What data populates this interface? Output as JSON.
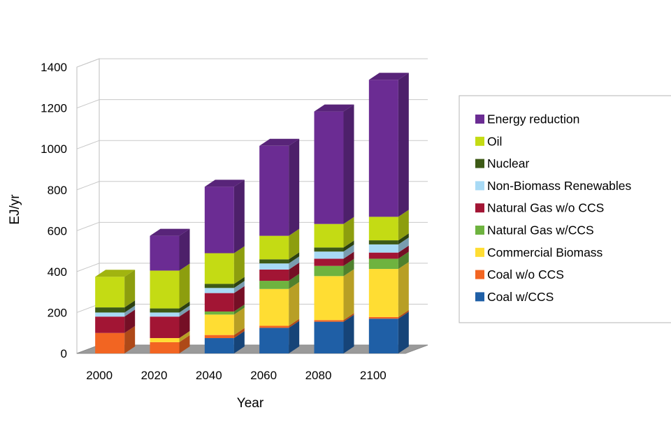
{
  "chart_data": {
    "type": "bar",
    "stacked": true,
    "three_d": true,
    "title": "",
    "xlabel": "Year",
    "ylabel": "EJ/yr",
    "ylim": [
      0,
      1400
    ],
    "yticks": [
      0,
      200,
      400,
      600,
      800,
      1000,
      1200,
      1400
    ],
    "grid": true,
    "legend_position": "right",
    "categories": [
      "2000",
      "2020",
      "2040",
      "2060",
      "2080",
      "2100"
    ],
    "series": [
      {
        "name": "Coal w/CCS",
        "color": "#1F5FA6",
        "values": [
          0,
          0,
          75,
          125,
          155,
          170
        ]
      },
      {
        "name": "Coal w/o CCS",
        "color": "#F26522",
        "values": [
          100,
          55,
          15,
          10,
          8,
          8
        ]
      },
      {
        "name": "Commercial Biomass",
        "color": "#FFDD33",
        "values": [
          0,
          20,
          100,
          180,
          215,
          235
        ]
      },
      {
        "name": "Natural Gas w/CCS",
        "color": "#6EB33F",
        "values": [
          0,
          0,
          15,
          40,
          50,
          50
        ]
      },
      {
        "name": "Natural Gas w/o CCS",
        "color": "#A21534",
        "values": [
          80,
          105,
          90,
          55,
          35,
          30
        ]
      },
      {
        "name": "Non-Biomass Renewables",
        "color": "#A8DAF5",
        "values": [
          20,
          20,
          25,
          30,
          35,
          40
        ]
      },
      {
        "name": "Nuclear",
        "color": "#3D5A16",
        "values": [
          25,
          20,
          20,
          20,
          20,
          20
        ]
      },
      {
        "name": "Oil",
        "color": "#C4DB14",
        "values": [
          150,
          185,
          150,
          115,
          115,
          115
        ]
      },
      {
        "name": "Energy reduction",
        "color": "#6B2C93",
        "values": [
          0,
          170,
          325,
          440,
          550,
          670
        ]
      }
    ]
  }
}
